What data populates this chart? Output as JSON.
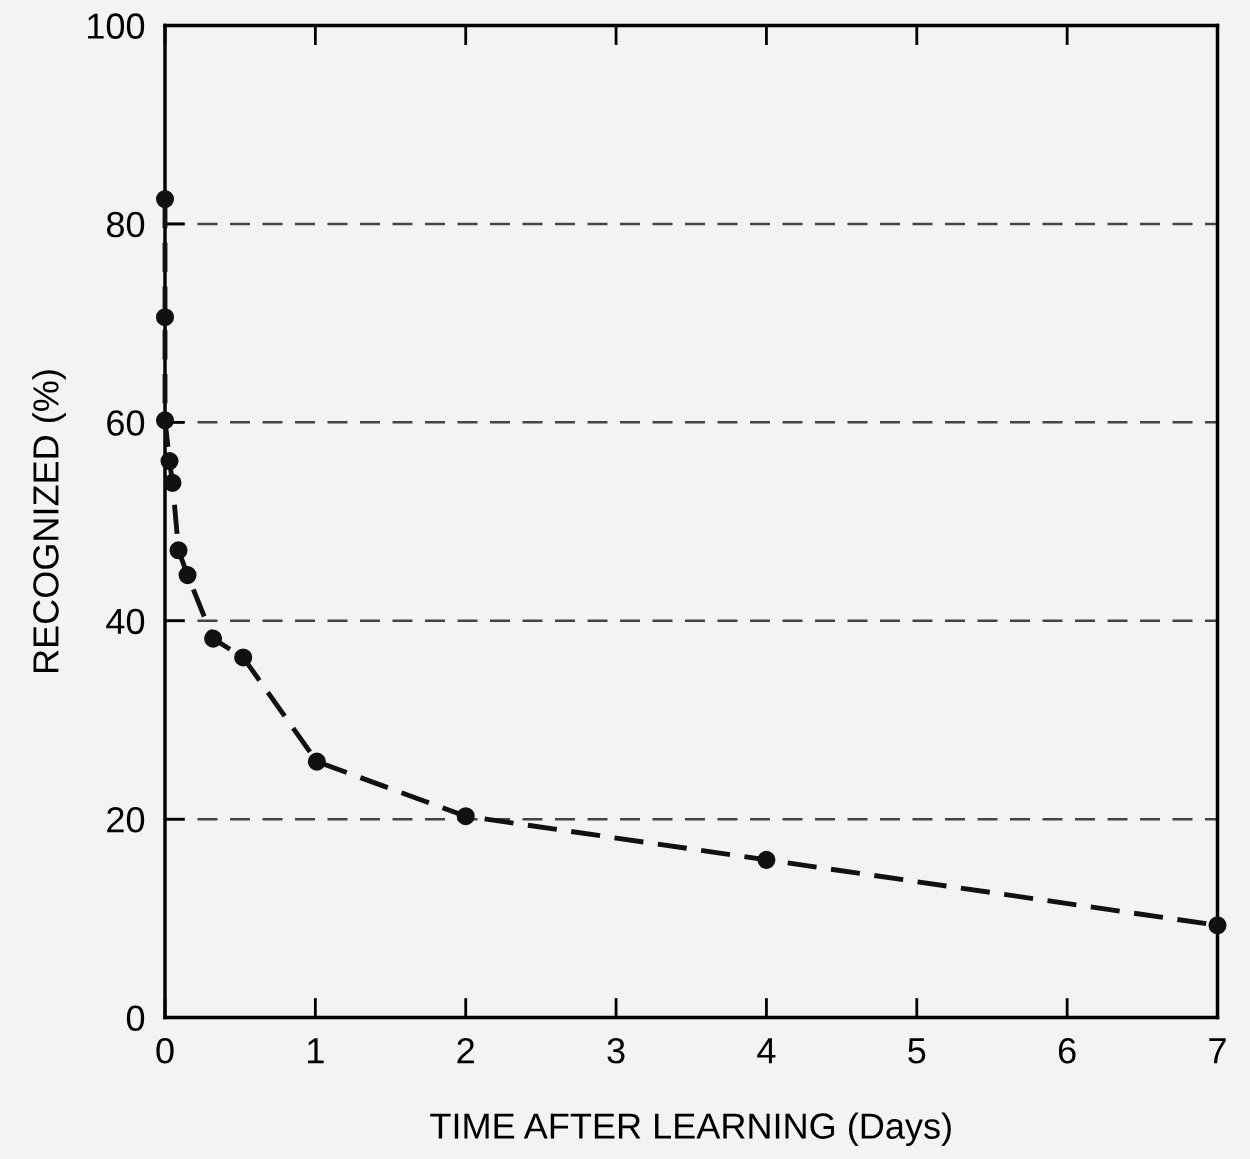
{
  "chart_data": {
    "type": "line",
    "xlabel": "TIME AFTER LEARNING (Days)",
    "ylabel": "RECOGNIZED (%)",
    "x": [
      0,
      0,
      0,
      0.03,
      0.05,
      0.09,
      0.15,
      0.32,
      0.52,
      1.01,
      2.0,
      4.0,
      7.0
    ],
    "series": [
      {
        "color": "#111111",
        "values": [
          82.5,
          70.6,
          60.2,
          56.1,
          53.9,
          47.1,
          44.6,
          38.2,
          36.3,
          25.8,
          20.3,
          15.9,
          9.3
        ]
      }
    ],
    "xlim": [
      0,
      7
    ],
    "ylim": [
      0,
      100
    ],
    "xticks": [
      0,
      1,
      2,
      3,
      4,
      5,
      6,
      7
    ],
    "yticks": [
      0,
      20,
      40,
      60,
      80,
      100
    ],
    "grid": "y",
    "marker": "circle",
    "line_style": "dashed"
  }
}
